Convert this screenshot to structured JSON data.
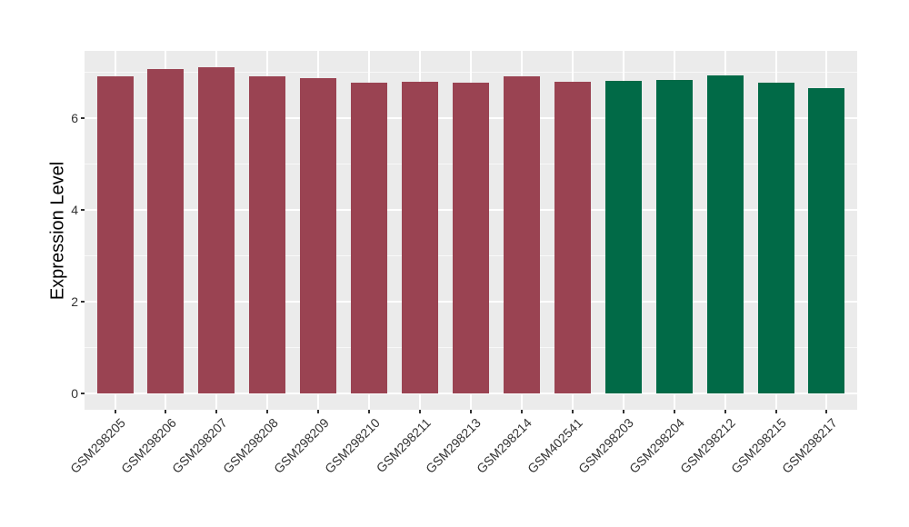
{
  "chart_data": {
    "type": "bar",
    "title": "",
    "xlabel": "",
    "ylabel": "Expression Level",
    "categories": [
      "GSM298205",
      "GSM298206",
      "GSM298207",
      "GSM298208",
      "GSM298209",
      "GSM298210",
      "GSM298211",
      "GSM298213",
      "GSM298214",
      "GSM402541",
      "GSM298203",
      "GSM298204",
      "GSM298212",
      "GSM298215",
      "GSM298217"
    ],
    "values": [
      6.91,
      7.06,
      7.1,
      6.9,
      6.87,
      6.76,
      6.79,
      6.76,
      6.9,
      6.78,
      6.8,
      6.82,
      6.92,
      6.77,
      6.64
    ],
    "bar_colors": [
      "#9A4352",
      "#9A4352",
      "#9A4352",
      "#9A4352",
      "#9A4352",
      "#9A4352",
      "#9A4352",
      "#9A4352",
      "#9A4352",
      "#9A4352",
      "#016A47",
      "#016A47",
      "#016A47",
      "#016A47",
      "#016A47"
    ],
    "group_split_index": 10,
    "group_color_a": "#9A4352",
    "group_color_b": "#016A47",
    "yticks": [
      0,
      2,
      4,
      6
    ],
    "minor_gridlines": [
      1,
      3,
      5,
      7
    ],
    "ylim": [
      -0.36,
      7.45
    ],
    "grid": "on",
    "legend_position": "none",
    "panel_background": "#EBEBEB",
    "gridline_color": "#FFFFFF"
  }
}
